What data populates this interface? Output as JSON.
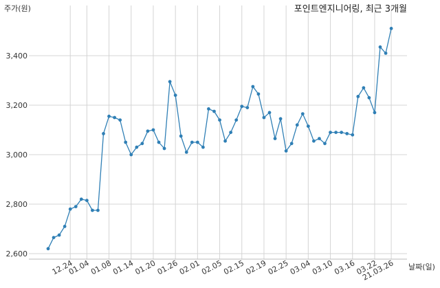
{
  "chart_data": {
    "type": "line",
    "title": "포인트엔지니어링, 최근 3개월",
    "xlabel": "날짜(일)",
    "ylabel": "주가(원)",
    "ylim": [
      2600,
      3550
    ],
    "yticks": [
      2600,
      2800,
      3000,
      3200,
      3400
    ],
    "ytick_labels": [
      "2,600",
      "2,800",
      "3,000",
      "3,200",
      "3,400"
    ],
    "grid": true,
    "color": "#2f7fb5",
    "xtick_labels": [
      "12.24",
      "01.04",
      "01.08",
      "01.14",
      "01.20",
      "01.26",
      "02.01",
      "02.05",
      "02.15",
      "02.19",
      "02.25",
      "03.04",
      "03.10",
      "03.16",
      "03.22",
      "21.03.26"
    ],
    "xtick_index": [
      4,
      7,
      11,
      15,
      19,
      23,
      27,
      31,
      35,
      39,
      43,
      47,
      51,
      55,
      59,
      62
    ],
    "series": [
      {
        "values": [
          2620,
          2665,
          2675,
          2710,
          2780,
          2790,
          2820,
          2815,
          2775,
          2775,
          3085,
          3155,
          3150,
          3140,
          3050,
          3000,
          3030,
          3045,
          3095,
          3100,
          3050,
          3025,
          3295,
          3240,
          3075,
          3010,
          3050,
          3050,
          3030,
          3185,
          3175,
          3140,
          3055,
          3090,
          3140,
          3195,
          3190,
          3275,
          3245,
          3150,
          3170,
          3065,
          3145,
          3015,
          3045,
          3120,
          3165,
          3115,
          3055,
          3065,
          3045,
          3090,
          3090,
          3090,
          3085,
          3080,
          3235,
          3270,
          3230,
          3170,
          3435,
          3410,
          3510
        ]
      }
    ]
  }
}
